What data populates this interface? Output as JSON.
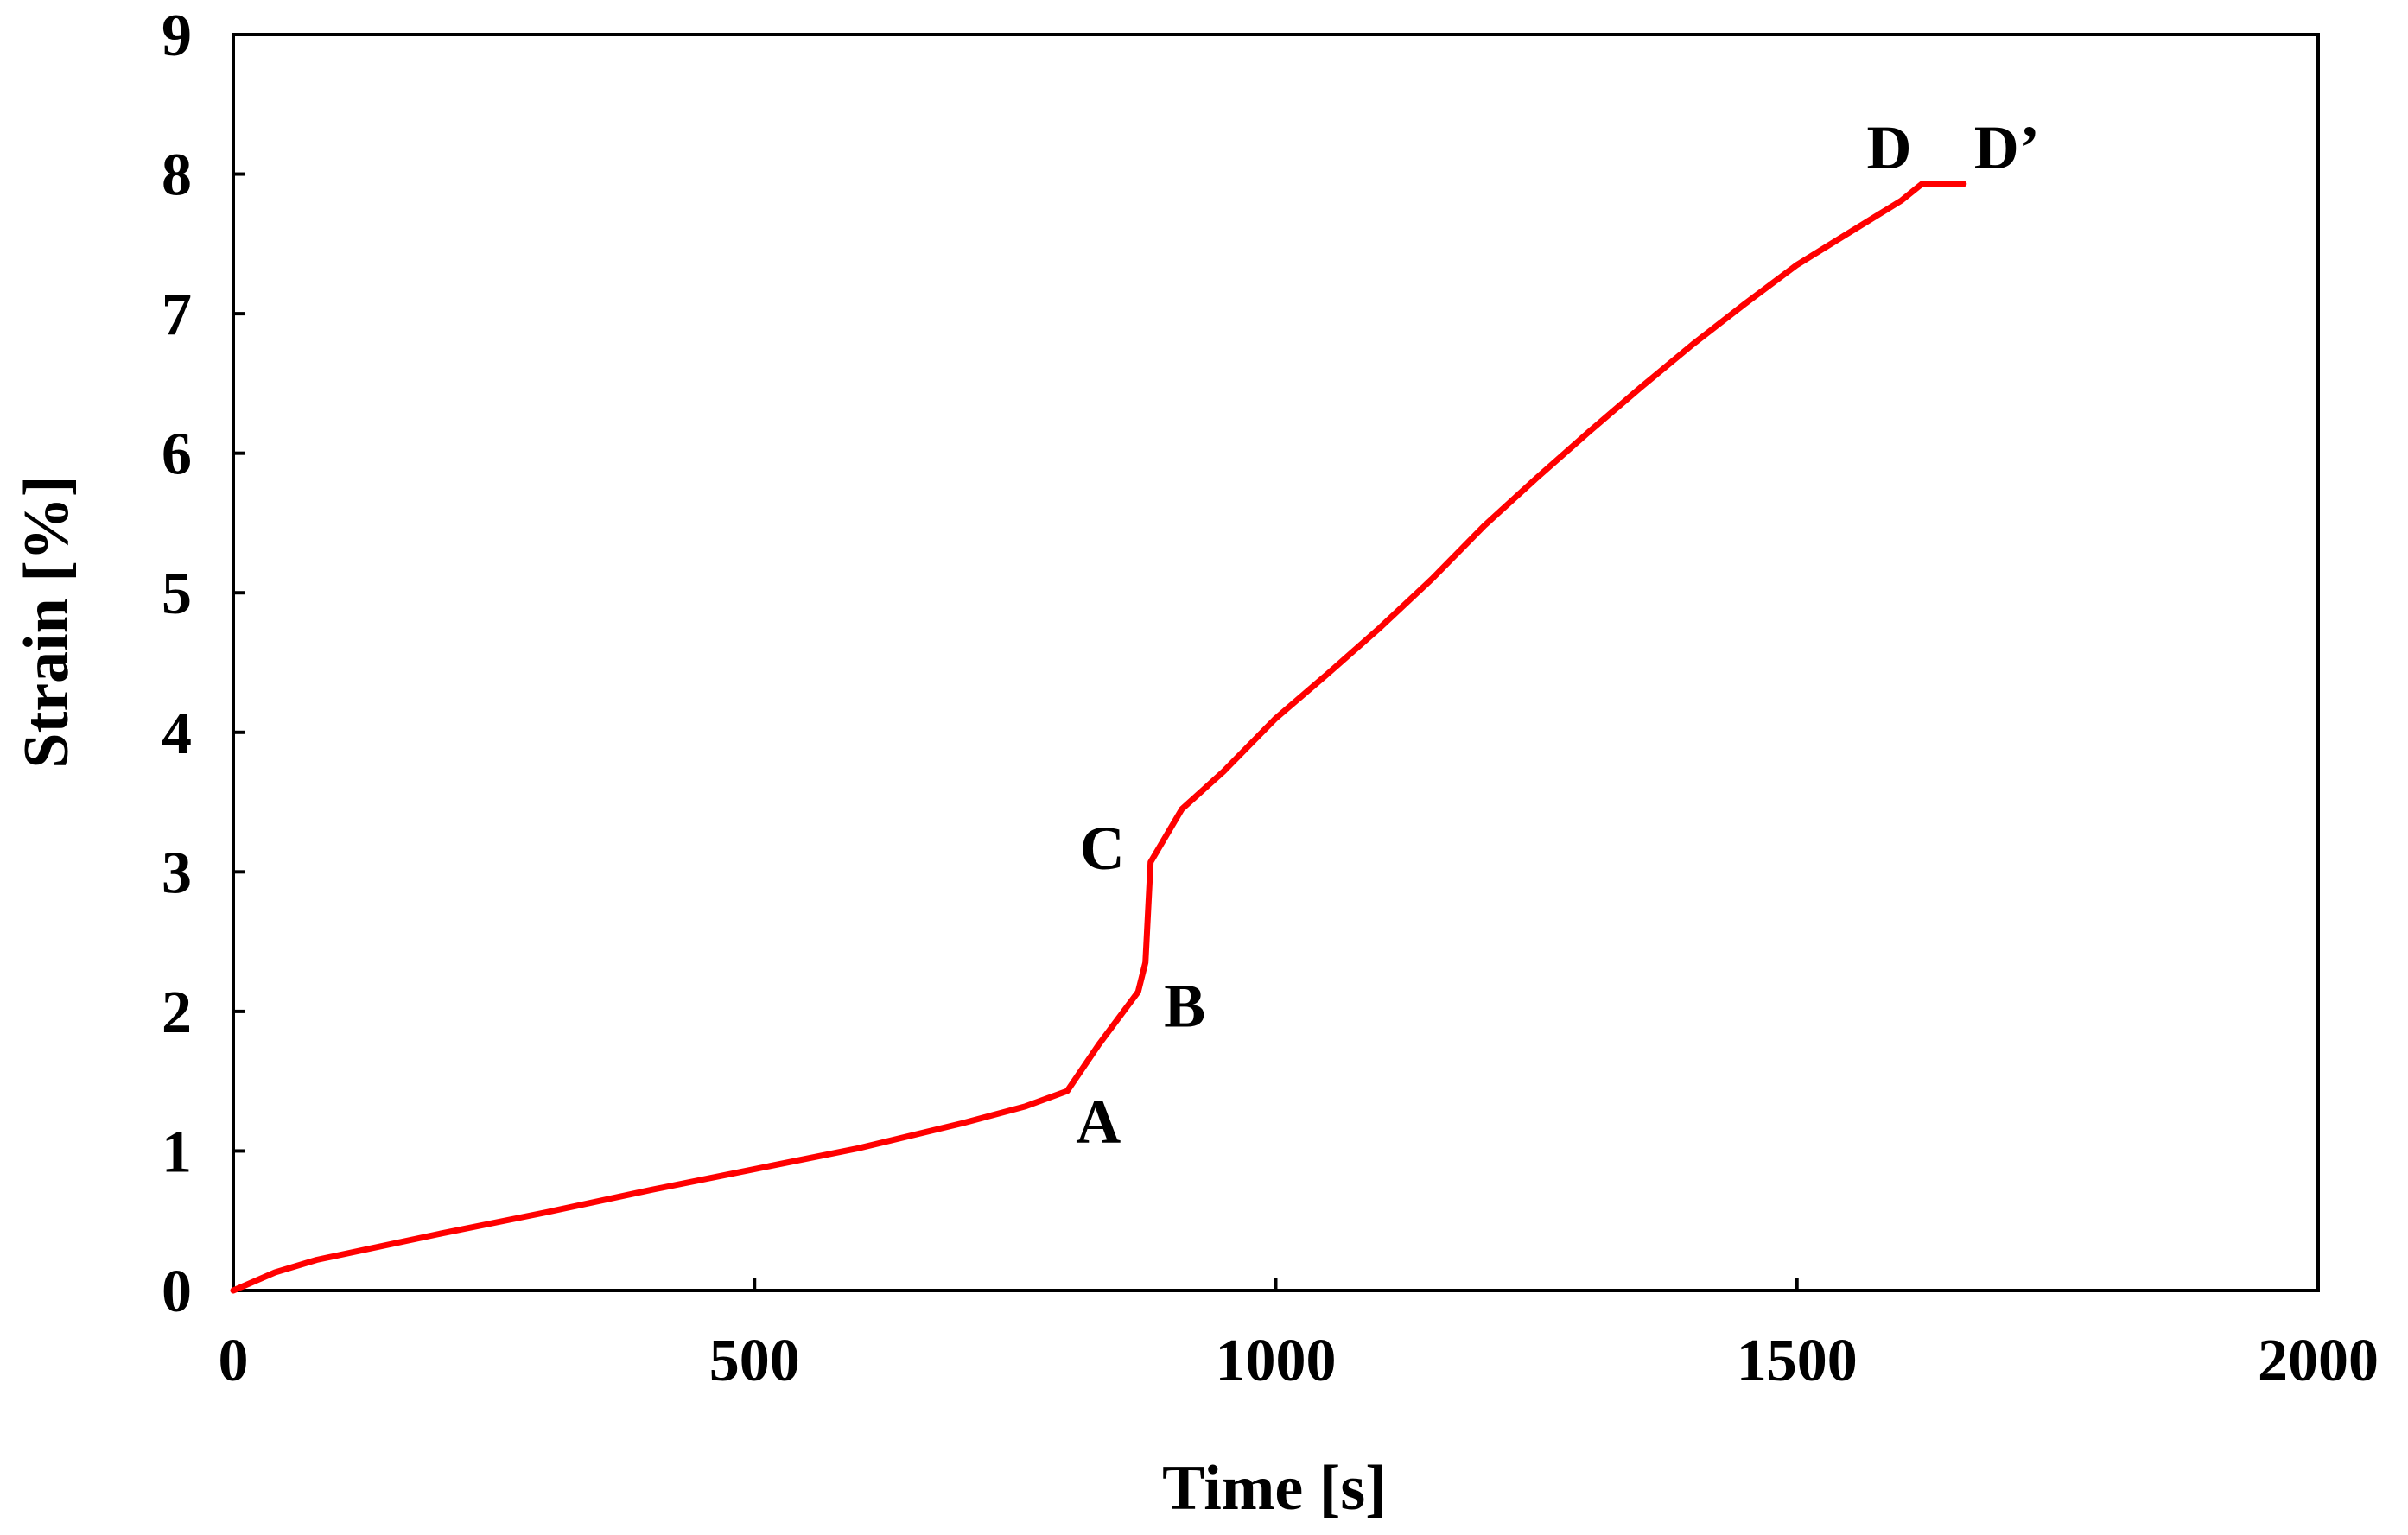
{
  "chart_data": {
    "type": "line",
    "title": "",
    "xlabel": "Time [s]",
    "ylabel": "Strain [%]",
    "xlim": [
      0,
      2000
    ],
    "ylim": [
      0,
      9
    ],
    "xticks": [
      0,
      500,
      1000,
      1500,
      2000
    ],
    "yticks": [
      0,
      1,
      2,
      3,
      4,
      5,
      6,
      7,
      8,
      9
    ],
    "xtick_labels": [
      "0",
      "500",
      "1000",
      "1500",
      "2000"
    ],
    "ytick_labels": [
      "0",
      "1",
      "2",
      "3",
      "4",
      "5",
      "6",
      "7",
      "8",
      "9"
    ],
    "grid": false,
    "legend": false,
    "series": [
      {
        "name": "Strain",
        "color": "#ff0000",
        "x": [
          0,
          40,
          80,
          200,
          300,
          400,
          500,
          600,
          700,
          760,
          800,
          830,
          868,
          875,
          880,
          910,
          950,
          1000,
          1050,
          1100,
          1150,
          1200,
          1250,
          1300,
          1350,
          1400,
          1450,
          1500,
          1550,
          1600,
          1620,
          1660
        ],
        "y": [
          0,
          0.13,
          0.22,
          0.41,
          0.56,
          0.72,
          0.87,
          1.02,
          1.2,
          1.32,
          1.43,
          1.76,
          2.14,
          2.35,
          3.07,
          3.45,
          3.72,
          4.1,
          4.42,
          4.75,
          5.1,
          5.48,
          5.82,
          6.15,
          6.47,
          6.78,
          7.07,
          7.35,
          7.58,
          7.81,
          7.93,
          7.93
        ]
      }
    ],
    "annotations": [
      {
        "text": "A",
        "x": 800,
        "y": 1.43
      },
      {
        "text": "B",
        "x": 868,
        "y": 2.14
      },
      {
        "text": "C",
        "x": 880,
        "y": 3.07
      },
      {
        "text": "D",
        "x": 1620,
        "y": 7.93
      },
      {
        "text": "D’",
        "x": 1660,
        "y": 7.93
      }
    ]
  }
}
